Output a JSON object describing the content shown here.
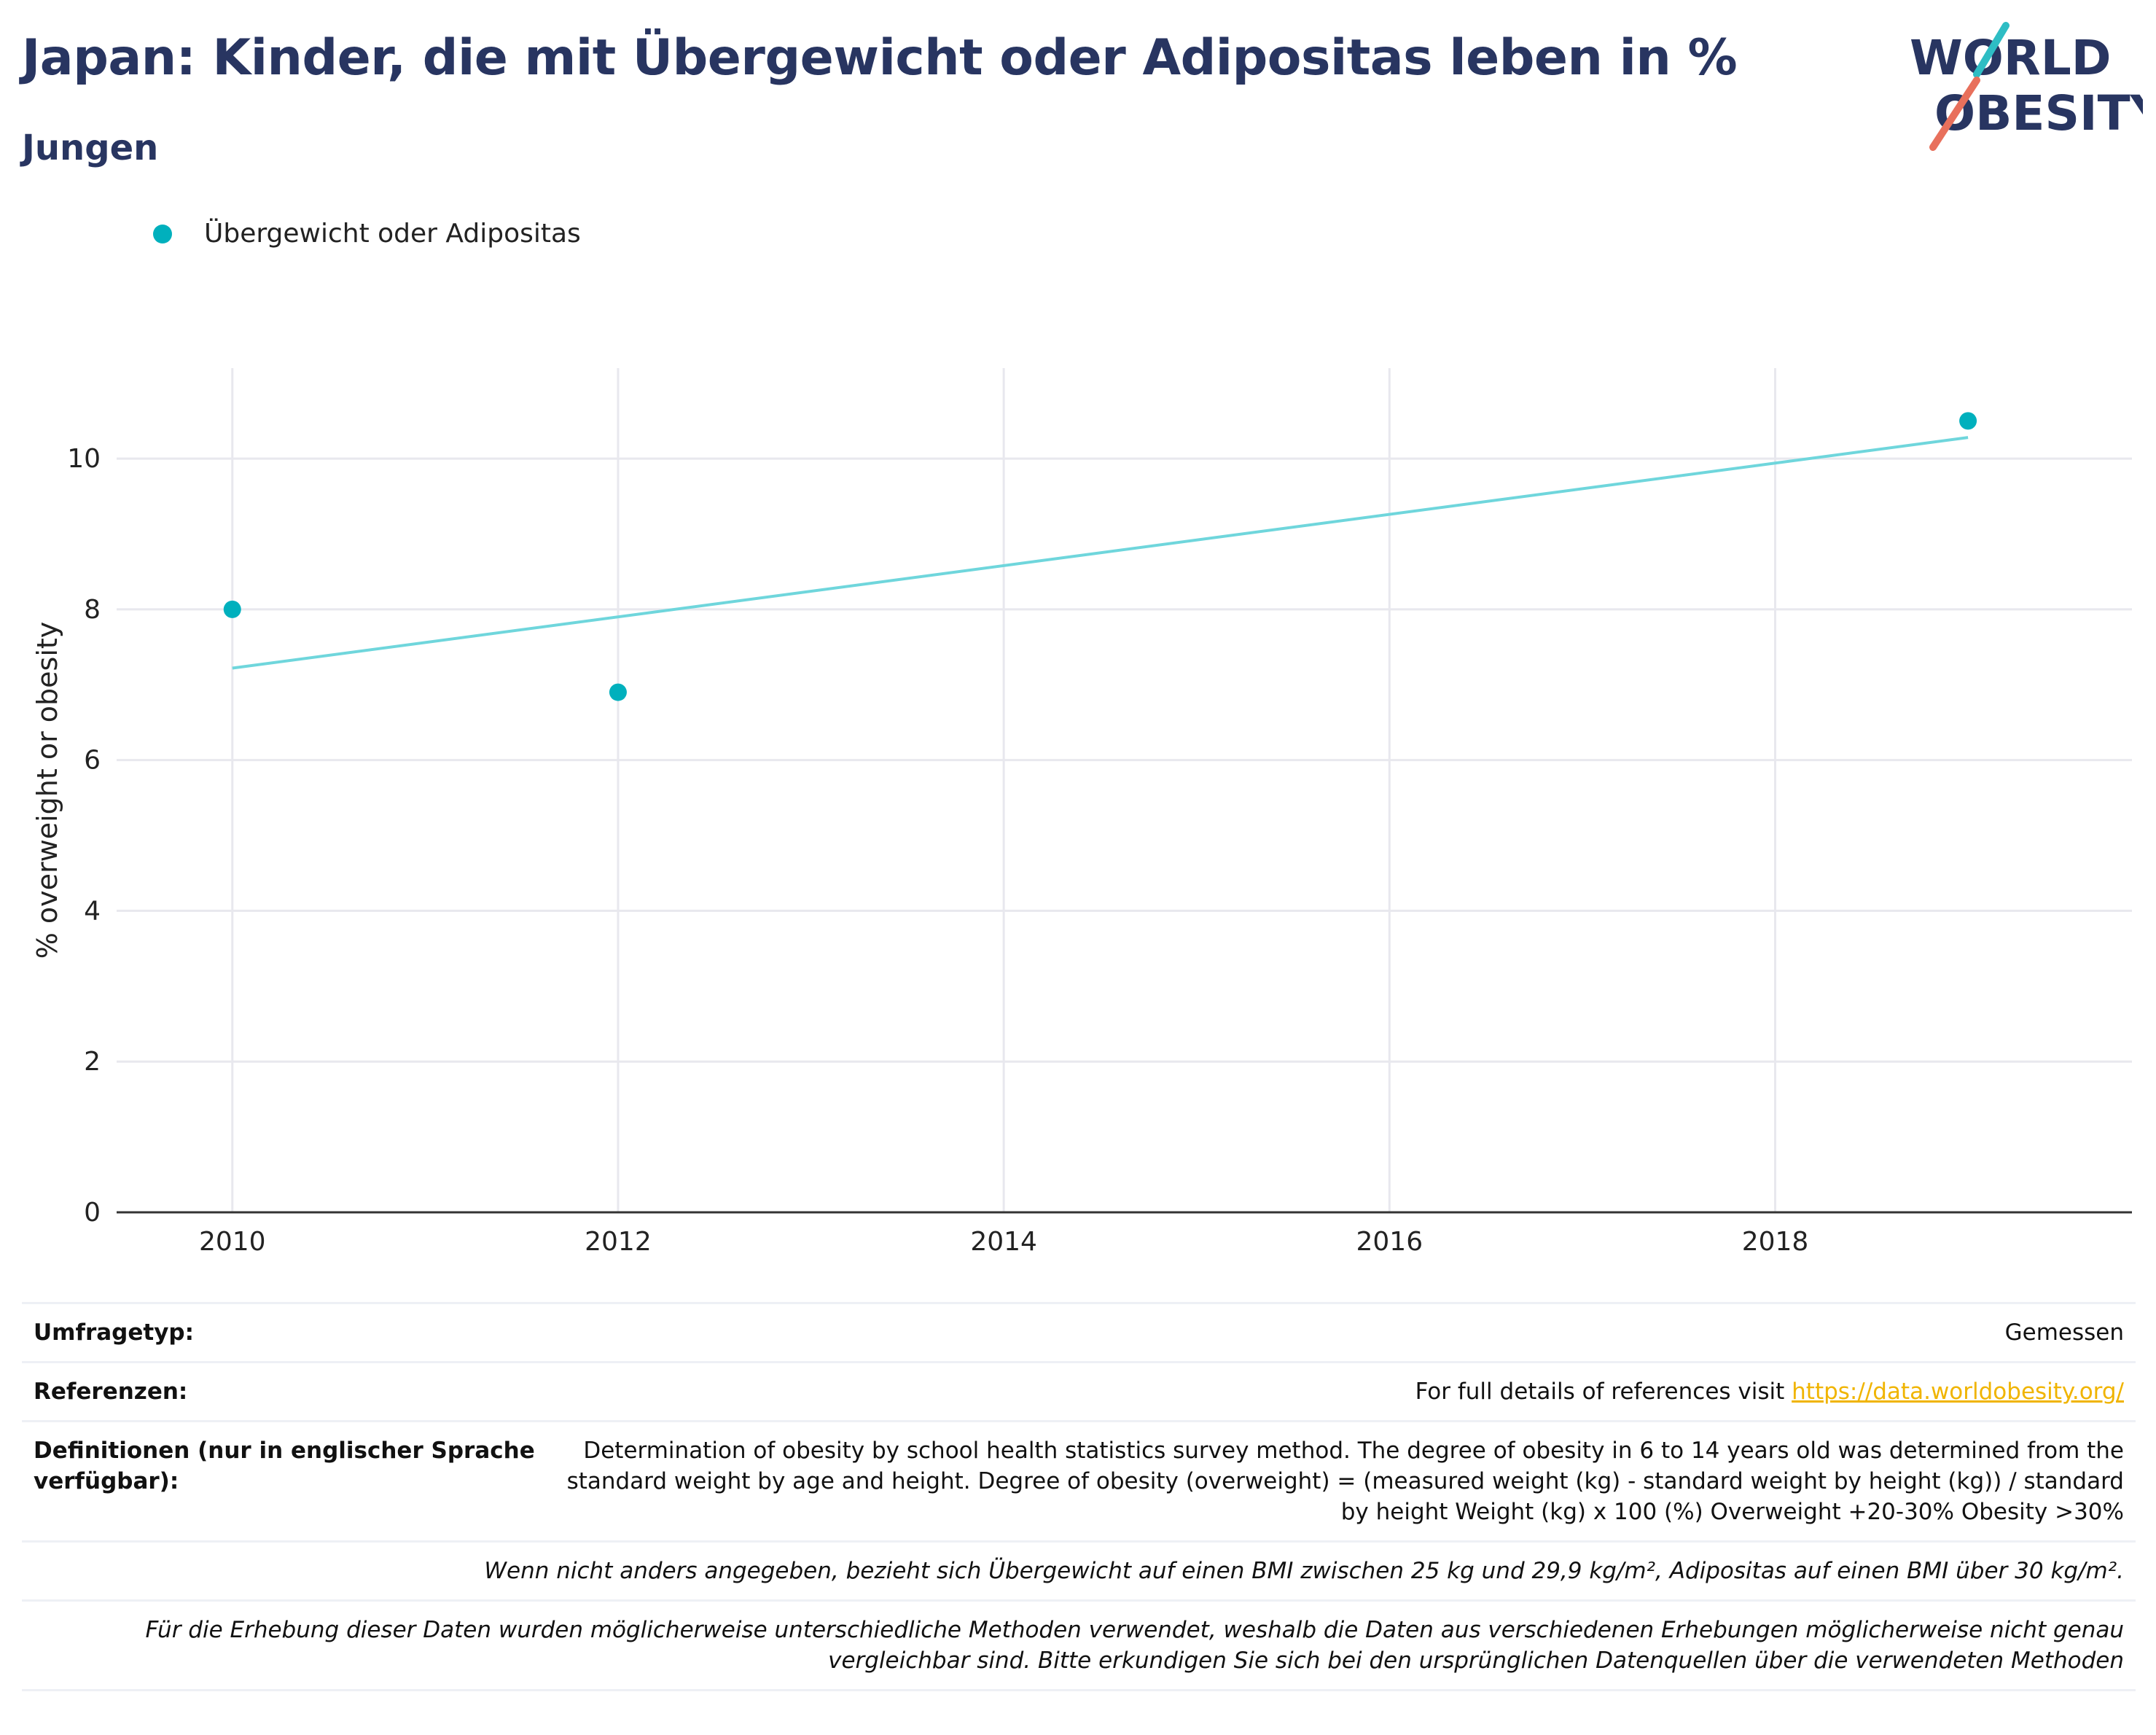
{
  "header": {
    "title": "Japan: Kinder, die mit Übergewicht oder Adipositas leben in %",
    "subtitle": "Jungen",
    "logo_line1": "WORLD",
    "logo_line2": "OBESITY"
  },
  "legend": {
    "series_label": "Übergewicht oder Adipositas"
  },
  "colors": {
    "title": "#283561",
    "series": "#00b0bd",
    "trend": "#6fd6dc",
    "link": "#f0b400",
    "grid": "#e8e8ee"
  },
  "chart_data": {
    "type": "scatter",
    "title": "Japan: Kinder, die mit Übergewicht oder Adipositas leben in %",
    "subtitle": "Jungen",
    "ylabel": "% overweight or obesity",
    "xlabel": "",
    "xlim": [
      2009.4,
      2019.85
    ],
    "ylim": [
      0,
      11.2
    ],
    "x_ticks": [
      2010,
      2012,
      2014,
      2016,
      2018
    ],
    "y_ticks": [
      0,
      2,
      4,
      6,
      8,
      10
    ],
    "grid": true,
    "legend_position": "top-left",
    "series": [
      {
        "name": "Übergewicht oder Adipositas",
        "points": [
          {
            "x": 2010,
            "y": 8.0
          },
          {
            "x": 2012,
            "y": 6.9
          },
          {
            "x": 2019,
            "y": 10.5
          }
        ]
      }
    ],
    "trendline": {
      "x": [
        2010,
        2019
      ],
      "y": [
        7.22,
        10.28
      ]
    }
  },
  "info": {
    "survey_type_label": "Umfragetyp:",
    "survey_type_value": "Gemessen",
    "references_label": "Referenzen:",
    "references_text": "For full details of references visit ",
    "references_link": "https://data.worldobesity.org/",
    "definitions_label": "Definitionen (nur in englischer Sprache verfügbar):",
    "definitions_value": "Determination of obesity by school health statistics survey method. The degree of obesity in 6 to 14 years old was determined from the standard weight by age and height. Degree of obesity (overweight) = (measured weight (kg) - standard weight by height (kg)) / standard by height Weight (kg) x 100 (%) Overweight +20-30% Obesity >30%",
    "note_bmi": "Wenn nicht anders angegeben, bezieht sich Übergewicht auf einen BMI zwischen 25 kg und 29,9 kg/m², Adipositas auf einen BMI über 30 kg/m².",
    "note_methods": "Für die Erhebung dieser Daten wurden möglicherweise unterschiedliche Methoden verwendet, weshalb die Daten aus verschiedenen Erhebungen möglicherweise nicht genau vergleichbar sind. Bitte erkundigen Sie sich bei den ursprünglichen Datenquellen über die verwendeten Methoden"
  }
}
